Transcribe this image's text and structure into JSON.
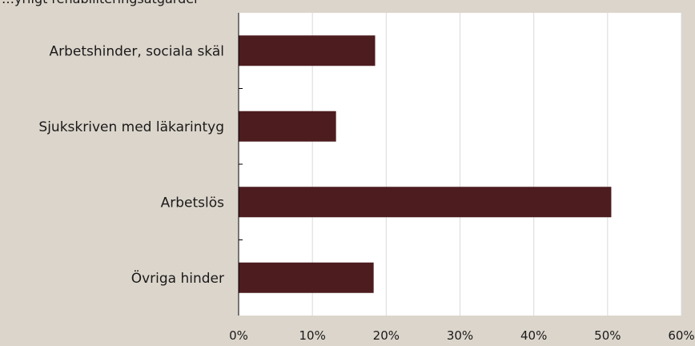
{
  "header": {
    "partial_title": "…yrligt rehabiliteringsåtgärder"
  },
  "chart_data": {
    "type": "bar",
    "orientation": "horizontal",
    "categories": [
      "Arbetshinder, sociala skäl",
      "Sjukskriven med läkarintyg",
      "Arbetslös",
      "Övriga hinder"
    ],
    "values": [
      18.5,
      13.2,
      50.5,
      18.3
    ],
    "xlim": [
      0,
      60
    ],
    "xticks": [
      "0%",
      "10%",
      "20%",
      "30%",
      "40%",
      "50%",
      "60%"
    ],
    "grid": true,
    "colors": {
      "bar": "#4d1c1f",
      "plot_bg": "#ffffff",
      "grid": "#d9d9d9",
      "axis": "#000000"
    }
  }
}
